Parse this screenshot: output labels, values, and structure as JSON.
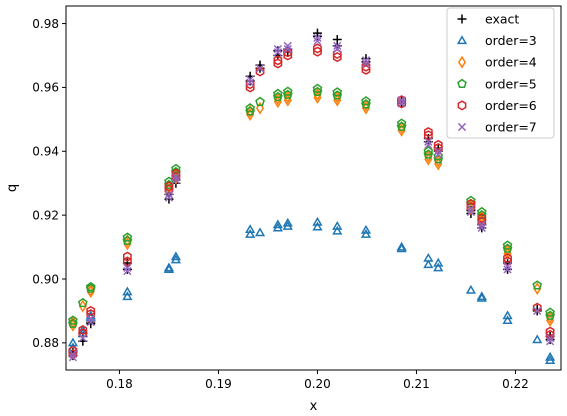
{
  "chart_data": {
    "type": "scatter",
    "xlabel": "x",
    "ylabel": "q",
    "xlim": [
      0.1746,
      0.2246
    ],
    "ylim": [
      0.8715,
      0.9855
    ],
    "xticks": [
      0.18,
      0.19,
      0.2,
      0.21,
      0.22
    ],
    "xtick_labels": [
      "0.18",
      "0.19",
      "0.20",
      "0.21",
      "0.22"
    ],
    "yticks": [
      0.88,
      0.9,
      0.92,
      0.94,
      0.96,
      0.98
    ],
    "ytick_labels": [
      "0.88",
      "0.90",
      "0.92",
      "0.94",
      "0.96",
      "0.98"
    ],
    "legend_position": "top-right",
    "grid": false,
    "series": [
      {
        "name": "exact",
        "marker": "plus",
        "color": "#000000",
        "x": [
          0.1753,
          0.1753,
          0.1763,
          0.1763,
          0.1771,
          0.1771,
          0.1808,
          0.1808,
          0.185,
          0.185,
          0.1857,
          0.1857,
          0.1932,
          0.1932,
          0.1942,
          0.1942,
          0.196,
          0.196,
          0.197,
          0.197,
          0.2,
          0.2,
          0.202,
          0.202,
          0.2049,
          0.2049,
          0.2085,
          0.2085,
          0.2112,
          0.2112,
          0.2122,
          0.2122,
          0.2155,
          0.2155,
          0.2166,
          0.2166,
          0.2192,
          0.2192,
          0.2222,
          0.2222,
          0.2235,
          0.2235
        ],
        "y": [
          0.877,
          0.876,
          0.882,
          0.8805,
          0.886,
          0.8865,
          0.905,
          0.903,
          0.925,
          0.9265,
          0.93,
          0.931,
          0.9635,
          0.962,
          0.967,
          0.966,
          0.9715,
          0.97,
          0.972,
          0.971,
          0.977,
          0.976,
          0.975,
          0.973,
          0.969,
          0.968,
          0.956,
          0.955,
          0.944,
          0.943,
          0.941,
          0.94,
          0.9205,
          0.9215,
          0.916,
          0.917,
          0.903,
          0.905,
          0.89,
          0.8905,
          0.881,
          0.882
        ]
      },
      {
        "name": "order=3",
        "marker": "triangle",
        "color": "#1f77b4",
        "x": [
          0.1753,
          0.1753,
          0.1763,
          0.1763,
          0.1771,
          0.1771,
          0.1808,
          0.1808,
          0.185,
          0.185,
          0.1857,
          0.1857,
          0.1932,
          0.1932,
          0.1942,
          0.196,
          0.196,
          0.197,
          0.197,
          0.2,
          0.2,
          0.202,
          0.202,
          0.2049,
          0.2049,
          0.2085,
          0.2085,
          0.2112,
          0.2112,
          0.2122,
          0.2122,
          0.2155,
          0.2166,
          0.2166,
          0.2192,
          0.2192,
          0.2222,
          0.2235,
          0.2235
        ],
        "y": [
          0.88,
          0.8785,
          0.884,
          0.883,
          0.8885,
          0.888,
          0.896,
          0.8945,
          0.9035,
          0.903,
          0.907,
          0.906,
          0.9155,
          0.914,
          0.9145,
          0.917,
          0.916,
          0.9175,
          0.9165,
          0.9178,
          0.9163,
          0.9165,
          0.915,
          0.9153,
          0.914,
          0.91,
          0.9095,
          0.9065,
          0.9045,
          0.905,
          0.9035,
          0.8965,
          0.8945,
          0.894,
          0.8885,
          0.887,
          0.881,
          0.8755,
          0.8745
        ]
      },
      {
        "name": "order=4",
        "marker": "diamond",
        "color": "#ff7f0e",
        "x": [
          0.1753,
          0.1753,
          0.1763,
          0.1771,
          0.1771,
          0.1808,
          0.1808,
          0.185,
          0.185,
          0.1857,
          0.1857,
          0.1932,
          0.1932,
          0.1942,
          0.196,
          0.196,
          0.197,
          0.197,
          0.2,
          0.2,
          0.202,
          0.202,
          0.2049,
          0.2049,
          0.2085,
          0.2085,
          0.2112,
          0.2112,
          0.2122,
          0.2122,
          0.2155,
          0.2155,
          0.2166,
          0.2166,
          0.2192,
          0.2192,
          0.2222,
          0.2235,
          0.2235
        ],
        "y": [
          0.8865,
          0.8855,
          0.8915,
          0.8965,
          0.896,
          0.912,
          0.911,
          0.929,
          0.928,
          0.9325,
          0.9315,
          0.9525,
          0.9515,
          0.9535,
          0.9565,
          0.9555,
          0.957,
          0.956,
          0.9578,
          0.9568,
          0.957,
          0.956,
          0.9545,
          0.9535,
          0.9475,
          0.9465,
          0.9385,
          0.9375,
          0.937,
          0.936,
          0.923,
          0.922,
          0.9195,
          0.9185,
          0.909,
          0.908,
          0.897,
          0.888,
          0.887
        ]
      },
      {
        "name": "order=5",
        "marker": "pentagon",
        "color": "#2ca02c",
        "x": [
          0.1753,
          0.1753,
          0.1763,
          0.1771,
          0.1771,
          0.1808,
          0.1808,
          0.185,
          0.185,
          0.1857,
          0.1857,
          0.1932,
          0.1932,
          0.1942,
          0.196,
          0.196,
          0.197,
          0.197,
          0.2,
          0.2,
          0.202,
          0.202,
          0.2049,
          0.2049,
          0.2085,
          0.2085,
          0.2112,
          0.2112,
          0.2122,
          0.2122,
          0.2155,
          0.2155,
          0.2166,
          0.2166,
          0.2192,
          0.2192,
          0.2222,
          0.2235,
          0.2235
        ],
        "y": [
          0.887,
          0.886,
          0.8925,
          0.8975,
          0.897,
          0.913,
          0.912,
          0.9305,
          0.9295,
          0.9345,
          0.9335,
          0.9535,
          0.9525,
          0.9555,
          0.958,
          0.957,
          0.9587,
          0.9577,
          0.9596,
          0.9586,
          0.9585,
          0.9575,
          0.9557,
          0.9547,
          0.9487,
          0.9477,
          0.94,
          0.939,
          0.9385,
          0.9375,
          0.9245,
          0.9235,
          0.921,
          0.92,
          0.9105,
          0.9095,
          0.898,
          0.8895,
          0.8885
        ]
      },
      {
        "name": "order=6",
        "marker": "hexagon",
        "color": "#d62728",
        "x": [
          0.1753,
          0.1753,
          0.1763,
          0.1763,
          0.1771,
          0.1771,
          0.1808,
          0.1808,
          0.185,
          0.185,
          0.1857,
          0.1857,
          0.1932,
          0.1932,
          0.1942,
          0.196,
          0.196,
          0.197,
          0.197,
          0.2,
          0.2,
          0.202,
          0.202,
          0.2049,
          0.2049,
          0.2085,
          0.2085,
          0.2112,
          0.2112,
          0.2122,
          0.2122,
          0.2155,
          0.2155,
          0.2166,
          0.2166,
          0.2192,
          0.2192,
          0.2222,
          0.2235,
          0.2235
        ],
        "y": [
          0.8775,
          0.8765,
          0.884,
          0.883,
          0.89,
          0.889,
          0.907,
          0.9055,
          0.929,
          0.928,
          0.933,
          0.932,
          0.961,
          0.96,
          0.965,
          0.9685,
          0.9675,
          0.971,
          0.97,
          0.9722,
          0.9712,
          0.9705,
          0.9695,
          0.9665,
          0.9655,
          0.956,
          0.955,
          0.946,
          0.945,
          0.942,
          0.941,
          0.9235,
          0.9225,
          0.919,
          0.918,
          0.9065,
          0.9055,
          0.891,
          0.8835,
          0.8825
        ]
      },
      {
        "name": "order=7",
        "marker": "x",
        "color": "#9467bd",
        "x": [
          0.1753,
          0.1753,
          0.1763,
          0.1771,
          0.1771,
          0.1808,
          0.1808,
          0.185,
          0.185,
          0.1857,
          0.1857,
          0.1932,
          0.1932,
          0.1942,
          0.196,
          0.196,
          0.197,
          0.197,
          0.2,
          0.2,
          0.202,
          0.202,
          0.2049,
          0.2049,
          0.2085,
          0.2085,
          0.2112,
          0.2112,
          0.2122,
          0.2122,
          0.2155,
          0.2155,
          0.2166,
          0.2166,
          0.2192,
          0.2192,
          0.2222,
          0.2235,
          0.2235
        ],
        "y": [
          0.8765,
          0.8755,
          0.8815,
          0.8875,
          0.8865,
          0.9035,
          0.9025,
          0.9265,
          0.9255,
          0.932,
          0.931,
          0.9625,
          0.9615,
          0.966,
          0.972,
          0.971,
          0.973,
          0.972,
          0.9755,
          0.9745,
          0.973,
          0.972,
          0.9685,
          0.9675,
          0.956,
          0.955,
          0.943,
          0.942,
          0.94,
          0.939,
          0.922,
          0.921,
          0.917,
          0.916,
          0.904,
          0.903,
          0.89,
          0.8815,
          0.8805
        ]
      }
    ]
  }
}
